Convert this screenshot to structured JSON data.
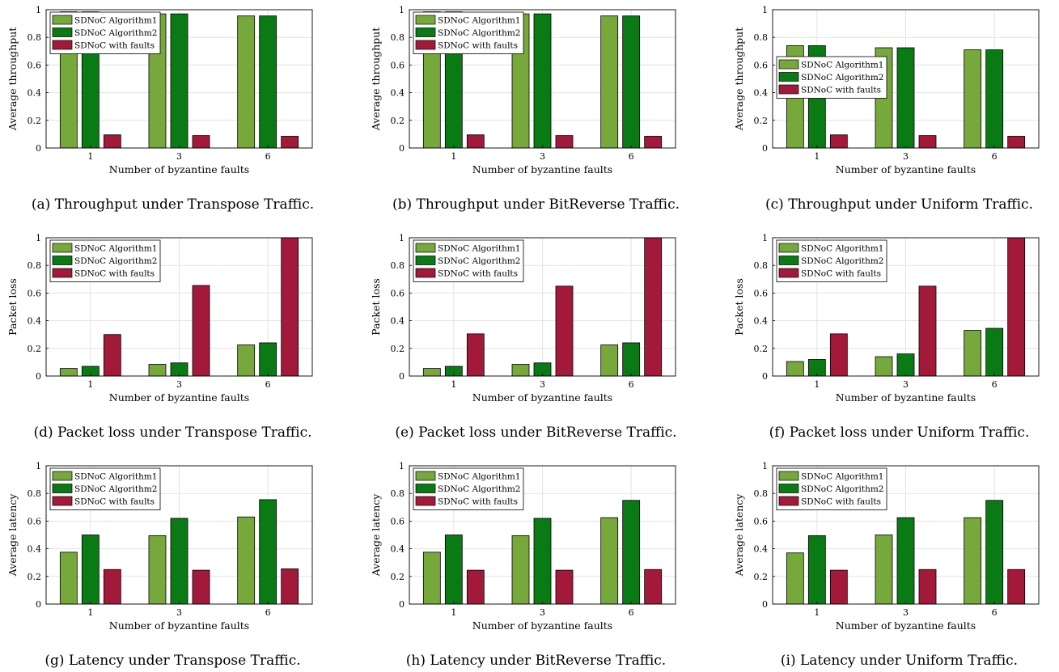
{
  "colors": {
    "SDNoC Algorithm1": "#76a83b",
    "SDNoC Algorithm2": "#0a7a14",
    "SDNoC with faults": "#a3193a",
    "grid": "#e3e3e3",
    "axis": "#000000"
  },
  "chart_data": [
    {
      "type": "bar",
      "caption": "(a) Throughput under Transpose Traffic.",
      "categories": [
        "1",
        "3",
        "6"
      ],
      "xlabel": "Number of byzantine faults",
      "ylabel": "Average throughput",
      "ylim": [
        0,
        1
      ],
      "yticks": [
        "0",
        "0.2",
        "0.4",
        "0.6",
        "0.8",
        "1"
      ],
      "grid": true,
      "legend": "top-left",
      "series": [
        {
          "name": "SDNoC Algorithm1",
          "values": [
            0.985,
            0.97,
            0.955
          ]
        },
        {
          "name": "SDNoC Algorithm2",
          "values": [
            0.985,
            0.97,
            0.955
          ]
        },
        {
          "name": "SDNoC with faults",
          "values": [
            0.095,
            0.09,
            0.085
          ]
        }
      ]
    },
    {
      "type": "bar",
      "caption": "(b) Throughput under BitReverse Traffic.",
      "categories": [
        "1",
        "3",
        "6"
      ],
      "xlabel": "Number of byzantine faults",
      "ylabel": "Average throughput",
      "ylim": [
        0,
        1
      ],
      "yticks": [
        "0",
        "0.2",
        "0.4",
        "0.6",
        "0.8",
        "1"
      ],
      "grid": true,
      "legend": "top-left",
      "series": [
        {
          "name": "SDNoC Algorithm1",
          "values": [
            0.985,
            0.97,
            0.955
          ]
        },
        {
          "name": "SDNoC Algorithm2",
          "values": [
            0.985,
            0.97,
            0.955
          ]
        },
        {
          "name": "SDNoC with faults",
          "values": [
            0.095,
            0.09,
            0.085
          ]
        }
      ]
    },
    {
      "type": "bar",
      "caption": "(c) Throughput under Uniform Traffic.",
      "categories": [
        "1",
        "3",
        "6"
      ],
      "xlabel": "Number of byzantine faults",
      "ylabel": "Average throughput",
      "ylim": [
        0,
        1
      ],
      "yticks": [
        "0",
        "0.2",
        "0.4",
        "0.6",
        "0.8",
        "1"
      ],
      "grid": true,
      "legend": "left",
      "series": [
        {
          "name": "SDNoC Algorithm1",
          "values": [
            0.74,
            0.725,
            0.71
          ]
        },
        {
          "name": "SDNoC Algorithm2",
          "values": [
            0.74,
            0.725,
            0.71
          ]
        },
        {
          "name": "SDNoC with faults",
          "values": [
            0.095,
            0.09,
            0.085
          ]
        }
      ]
    },
    {
      "type": "bar",
      "caption": "(d) Packet loss under Transpose Traffic.",
      "categories": [
        "1",
        "3",
        "6"
      ],
      "xlabel": "Number of byzantine faults",
      "ylabel": "Packet loss",
      "ylim": [
        0,
        1
      ],
      "yticks": [
        "0",
        "0.2",
        "0.4",
        "0.6",
        "0.8",
        "1"
      ],
      "grid": true,
      "legend": "top-left",
      "series": [
        {
          "name": "SDNoC Algorithm1",
          "values": [
            0.055,
            0.085,
            0.225
          ]
        },
        {
          "name": "SDNoC Algorithm2",
          "values": [
            0.07,
            0.095,
            0.24
          ]
        },
        {
          "name": "SDNoC with faults",
          "values": [
            0.3,
            0.655,
            1.0
          ]
        }
      ]
    },
    {
      "type": "bar",
      "caption": "(e) Packet loss under BitReverse Traffic.",
      "categories": [
        "1",
        "3",
        "6"
      ],
      "xlabel": "Number of byzantine faults",
      "ylabel": "Packet loss",
      "ylim": [
        0,
        1
      ],
      "yticks": [
        "0",
        "0.2",
        "0.4",
        "0.6",
        "0.8",
        "1"
      ],
      "grid": true,
      "legend": "top-left",
      "series": [
        {
          "name": "SDNoC Algorithm1",
          "values": [
            0.055,
            0.085,
            0.225
          ]
        },
        {
          "name": "SDNoC Algorithm2",
          "values": [
            0.07,
            0.095,
            0.24
          ]
        },
        {
          "name": "SDNoC with faults",
          "values": [
            0.305,
            0.65,
            1.0
          ]
        }
      ]
    },
    {
      "type": "bar",
      "caption": "(f) Packet loss under Uniform Traffic.",
      "categories": [
        "1",
        "3",
        "6"
      ],
      "xlabel": "Number of byzantine faults",
      "ylabel": "Packet loss",
      "ylim": [
        0,
        1
      ],
      "yticks": [
        "0",
        "0.2",
        "0.4",
        "0.6",
        "0.8",
        "1"
      ],
      "grid": true,
      "legend": "top-left",
      "series": [
        {
          "name": "SDNoC Algorithm1",
          "values": [
            0.105,
            0.14,
            0.33
          ]
        },
        {
          "name": "SDNoC Algorithm2",
          "values": [
            0.12,
            0.16,
            0.345
          ]
        },
        {
          "name": "SDNoC with faults",
          "values": [
            0.305,
            0.65,
            1.0
          ]
        }
      ]
    },
    {
      "type": "bar",
      "caption": "(g) Latency under Transpose Traffic.",
      "categories": [
        "1",
        "3",
        "6"
      ],
      "xlabel": "Number of byzantine faults",
      "ylabel": "Average latency",
      "ylim": [
        0,
        1
      ],
      "yticks": [
        "0",
        "0.2",
        "0.4",
        "0.6",
        "0.8",
        "1"
      ],
      "grid": true,
      "legend": "top-left",
      "series": [
        {
          "name": "SDNoC Algorithm1",
          "values": [
            0.375,
            0.495,
            0.63
          ]
        },
        {
          "name": "SDNoC Algorithm2",
          "values": [
            0.5,
            0.62,
            0.755
          ]
        },
        {
          "name": "SDNoC with faults",
          "values": [
            0.25,
            0.245,
            0.255
          ]
        }
      ]
    },
    {
      "type": "bar",
      "caption": "(h) Latency under BitReverse Traffic.",
      "categories": [
        "1",
        "3",
        "6"
      ],
      "xlabel": "Number of byzantine faults",
      "ylabel": "Average latency",
      "ylim": [
        0,
        1
      ],
      "yticks": [
        "0",
        "0.2",
        "0.4",
        "0.6",
        "0.8",
        "1"
      ],
      "grid": true,
      "legend": "top-left",
      "series": [
        {
          "name": "SDNoC Algorithm1",
          "values": [
            0.375,
            0.495,
            0.625
          ]
        },
        {
          "name": "SDNoC Algorithm2",
          "values": [
            0.5,
            0.62,
            0.75
          ]
        },
        {
          "name": "SDNoC with faults",
          "values": [
            0.245,
            0.245,
            0.25
          ]
        }
      ]
    },
    {
      "type": "bar",
      "caption": "(i) Latency under Uniform Traffic.",
      "categories": [
        "1",
        "3",
        "6"
      ],
      "xlabel": "Number of byzantine faults",
      "ylabel": "Average latency",
      "ylim": [
        0,
        1
      ],
      "yticks": [
        "0",
        "0.2",
        "0.4",
        "0.6",
        "0.8",
        "1"
      ],
      "grid": true,
      "legend": "top-left",
      "series": [
        {
          "name": "SDNoC Algorithm1",
          "values": [
            0.37,
            0.5,
            0.625
          ]
        },
        {
          "name": "SDNoC Algorithm2",
          "values": [
            0.495,
            0.625,
            0.75
          ]
        },
        {
          "name": "SDNoC with faults",
          "values": [
            0.245,
            0.25,
            0.25
          ]
        }
      ]
    }
  ]
}
